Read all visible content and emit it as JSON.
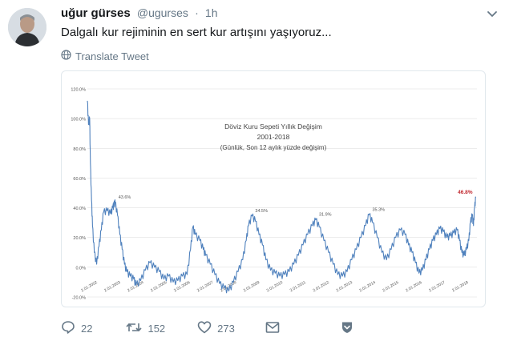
{
  "tweet": {
    "name": "uğur gürses",
    "handle": "@ugurses",
    "dot": "·",
    "time": "1h",
    "text": "Dalgalı kur rejiminin en sert kur artışını yaşıyoruz...",
    "translate_label": "Translate Tweet"
  },
  "actions": {
    "reply_count": "22",
    "retweet_count": "152",
    "like_count": "273"
  },
  "icons": {
    "avatar": "avatar",
    "chevron": "chevron-down-icon",
    "translate": "globe-icon",
    "reply": "reply-icon",
    "retweet": "retweet-icon",
    "like": "heart-icon",
    "dm": "envelope-icon",
    "save": "bookmark-shield-icon"
  },
  "colors": {
    "line": "#4f81bd",
    "highlight": "#c0262d",
    "icon_gray": "#657786",
    "grid": "#d9d9d9"
  },
  "chart_data": {
    "type": "line",
    "title": "Döviz Kuru Sepeti  Yıllık Değişim",
    "subtitle": "2001-2018",
    "note": "(Günlük, Son 12 aylık yüzde değişim)",
    "ylim": [
      -20,
      120
    ],
    "y_ticks": [
      "120.0%",
      "100.0%",
      "80.0%",
      "60.0%",
      "40.0%",
      "20.0%",
      "0.0%",
      "-20.0%"
    ],
    "x_tick_labels": [
      "2.01.2002",
      "2.01.2003",
      "2.01.2004",
      "2.01.2005",
      "2.01.2006",
      "2.01.2007",
      "2.01.2008",
      "2.01.2009",
      "2.01.2010",
      "2.01.2011",
      "2.01.2012",
      "2.01.2013",
      "2.01.2014",
      "2.01.2015",
      "2.01.2016",
      "2.01.2017",
      "2.01.2018"
    ],
    "x_tick_years": [
      2002,
      2003,
      2004,
      2005,
      2006,
      2007,
      2008,
      2009,
      2010,
      2011,
      2012,
      2013,
      2014,
      2015,
      2016,
      2017,
      2018
    ],
    "xlim": [
      2001.9,
      2018.7
    ],
    "series": [
      {
        "points": [
          [
            2001.9,
            112
          ],
          [
            2001.95,
            96
          ],
          [
            2002.0,
            100
          ],
          [
            2002.03,
            70
          ],
          [
            2002.08,
            45
          ],
          [
            2002.12,
            28
          ],
          [
            2002.2,
            10
          ],
          [
            2002.3,
            2
          ],
          [
            2002.4,
            14
          ],
          [
            2002.5,
            25
          ],
          [
            2002.6,
            37
          ],
          [
            2002.75,
            38
          ],
          [
            2002.9,
            36
          ],
          [
            2003.0,
            40
          ],
          [
            2003.05,
            42
          ],
          [
            2003.1,
            43.6
          ],
          [
            2003.2,
            35
          ],
          [
            2003.3,
            22
          ],
          [
            2003.4,
            12
          ],
          [
            2003.5,
            2
          ],
          [
            2003.6,
            -3
          ],
          [
            2003.75,
            -6
          ],
          [
            2003.9,
            -8
          ],
          [
            2004.0,
            -12
          ],
          [
            2004.2,
            -9
          ],
          [
            2004.4,
            -2
          ],
          [
            2004.6,
            3
          ],
          [
            2004.8,
            0
          ],
          [
            2005.0,
            -3
          ],
          [
            2005.2,
            -8
          ],
          [
            2005.4,
            -6
          ],
          [
            2005.6,
            -10
          ],
          [
            2005.8,
            -9
          ],
          [
            2006.0,
            -6
          ],
          [
            2006.2,
            -5
          ],
          [
            2006.35,
            12
          ],
          [
            2006.45,
            27
          ],
          [
            2006.55,
            22
          ],
          [
            2006.75,
            18
          ],
          [
            2006.9,
            12
          ],
          [
            2007.0,
            8
          ],
          [
            2007.2,
            2
          ],
          [
            2007.4,
            -5
          ],
          [
            2007.6,
            -11
          ],
          [
            2007.8,
            -14
          ],
          [
            2008.0,
            -16
          ],
          [
            2008.2,
            -10
          ],
          [
            2008.4,
            -3
          ],
          [
            2008.6,
            5
          ],
          [
            2008.75,
            18
          ],
          [
            2008.85,
            28
          ],
          [
            2009.0,
            34.5
          ],
          [
            2009.15,
            31
          ],
          [
            2009.3,
            22
          ],
          [
            2009.45,
            15
          ],
          [
            2009.6,
            5
          ],
          [
            2009.8,
            -2
          ],
          [
            2010.0,
            -4
          ],
          [
            2010.2,
            -6
          ],
          [
            2010.4,
            -5
          ],
          [
            2010.6,
            -3
          ],
          [
            2010.8,
            2
          ],
          [
            2011.0,
            8
          ],
          [
            2011.2,
            15
          ],
          [
            2011.4,
            22
          ],
          [
            2011.6,
            28
          ],
          [
            2011.75,
            31.9
          ],
          [
            2011.9,
            27
          ],
          [
            2012.1,
            18
          ],
          [
            2012.3,
            10
          ],
          [
            2012.5,
            2
          ],
          [
            2012.7,
            -5
          ],
          [
            2012.9,
            -6
          ],
          [
            2013.1,
            -3
          ],
          [
            2013.3,
            5
          ],
          [
            2013.5,
            12
          ],
          [
            2013.7,
            20
          ],
          [
            2013.9,
            28
          ],
          [
            2014.05,
            35.3
          ],
          [
            2014.2,
            30
          ],
          [
            2014.4,
            20
          ],
          [
            2014.6,
            10
          ],
          [
            2014.8,
            5
          ],
          [
            2015.0,
            12
          ],
          [
            2015.2,
            20
          ],
          [
            2015.4,
            25
          ],
          [
            2015.6,
            22
          ],
          [
            2015.75,
            15
          ],
          [
            2015.9,
            10
          ],
          [
            2016.05,
            3
          ],
          [
            2016.2,
            -4
          ],
          [
            2016.35,
            -2
          ],
          [
            2016.5,
            5
          ],
          [
            2016.65,
            12
          ],
          [
            2016.8,
            18
          ],
          [
            2016.95,
            22
          ],
          [
            2017.1,
            26
          ],
          [
            2017.25,
            24
          ],
          [
            2017.4,
            20
          ],
          [
            2017.55,
            21
          ],
          [
            2017.7,
            23
          ],
          [
            2017.85,
            25
          ],
          [
            2017.95,
            18
          ],
          [
            2018.05,
            10
          ],
          [
            2018.15,
            8
          ],
          [
            2018.25,
            12
          ],
          [
            2018.35,
            18
          ],
          [
            2018.42,
            30
          ],
          [
            2018.5,
            35
          ],
          [
            2018.55,
            28
          ],
          [
            2018.6,
            40
          ],
          [
            2018.65,
            46.8
          ]
        ]
      }
    ],
    "annotations": [
      {
        "label": "43.6%",
        "x": 2003.1,
        "y": 43.6,
        "highlight": false
      },
      {
        "label": "34.5%",
        "x": 2009.0,
        "y": 34.5,
        "highlight": false
      },
      {
        "label": "31.9%",
        "x": 2011.75,
        "y": 31.9,
        "highlight": false
      },
      {
        "label": "35.3%",
        "x": 2014.05,
        "y": 35.3,
        "highlight": false
      },
      {
        "label": "46.8%",
        "x": 2018.65,
        "y": 46.8,
        "highlight": true
      }
    ]
  }
}
